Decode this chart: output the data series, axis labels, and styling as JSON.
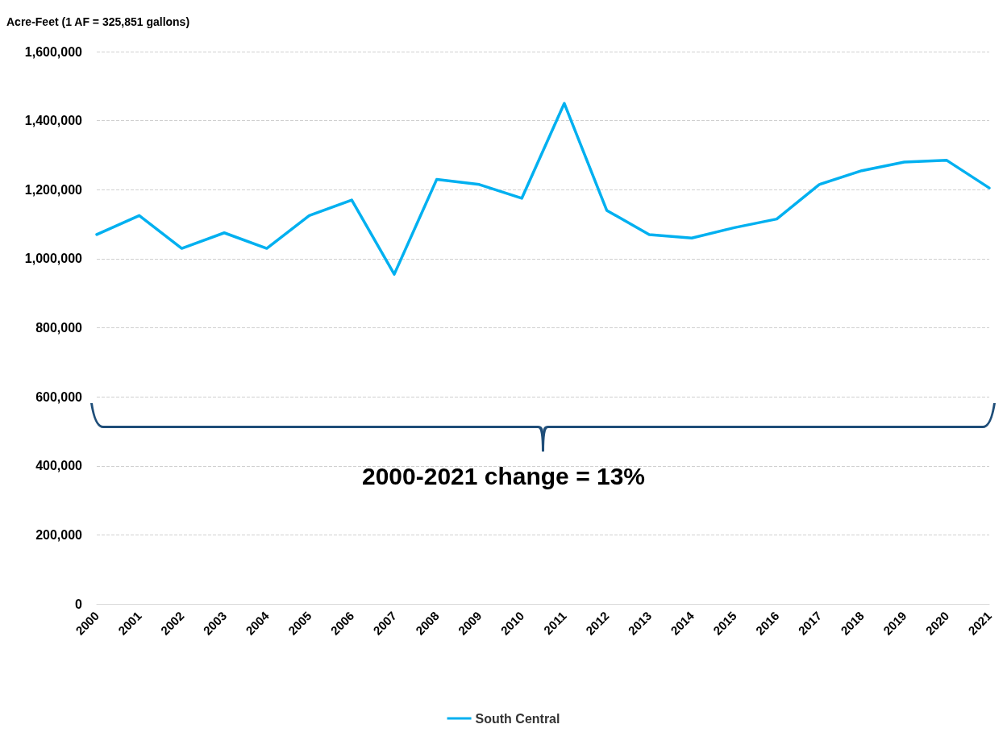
{
  "chart_data": {
    "type": "line",
    "ylabel": "Acre-Feet (1 AF = 325,851 gallons)",
    "categories": [
      "2000",
      "2001",
      "2002",
      "2003",
      "2004",
      "2005",
      "2006",
      "2007",
      "2008",
      "2009",
      "2010",
      "2011",
      "2012",
      "2013",
      "2014",
      "2015",
      "2016",
      "2017",
      "2018",
      "2019",
      "2020",
      "2021"
    ],
    "series": [
      {
        "name": "South Central",
        "color": "#00b0f0",
        "values": [
          1070000,
          1125000,
          1030000,
          1075000,
          1030000,
          1125000,
          1170000,
          955000,
          1230000,
          1215000,
          1175000,
          1450000,
          1140000,
          1070000,
          1060000,
          1090000,
          1115000,
          1215000,
          1255000,
          1280000,
          1285000,
          1205000
        ]
      }
    ],
    "ylim": [
      0,
      1600000
    ],
    "yticks": [
      0,
      {
        "value": 200000,
        "label": "200,000"
      },
      {
        "value": 400000,
        "label": "400,000"
      },
      {
        "value": 600000,
        "label": "600,000"
      },
      {
        "value": 800000,
        "label": "800,000"
      },
      {
        "value": 1000000,
        "label": "1,000,000"
      },
      {
        "value": 1200000,
        "label": "1,200,000"
      },
      {
        "value": 1400000,
        "label": "1,400,000"
      },
      {
        "value": 1600000,
        "label": "1,600,000"
      }
    ],
    "grid": "y",
    "legend": "bottom",
    "marker": "none",
    "line_style": "solid",
    "annotations": [
      "2000-2021 change = 13%"
    ]
  }
}
